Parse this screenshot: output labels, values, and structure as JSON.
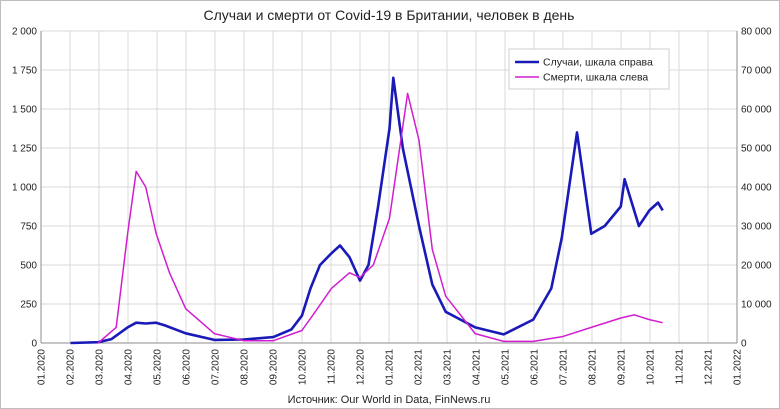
{
  "chart_data": {
    "type": "line",
    "title": "Случаи и смерти от Covid-19 в Британии, человек в день",
    "source": "Источник: Our World in Data, FinNews.ru",
    "x_ticks": [
      "01.2020",
      "02.2020",
      "03.2020",
      "04.2020",
      "05.2020",
      "06.2020",
      "07.2020",
      "08.2020",
      "09.2020",
      "10.2020",
      "11.2020",
      "12.2020",
      "01.2021",
      "02.2021",
      "03.2021",
      "04.2021",
      "05.2021",
      "06.2021",
      "07.2021",
      "08.2021",
      "09.2021",
      "10.2021",
      "11.2021",
      "12.2021",
      "01.2022"
    ],
    "y_left": {
      "ticks": [
        "0",
        "250",
        "500",
        "750",
        "1 000",
        "1 250",
        "1 500",
        "1 750",
        "2 000"
      ],
      "ylim": [
        0,
        2000
      ]
    },
    "y_right": {
      "ticks": [
        "0",
        "10 000",
        "20 000",
        "30 000",
        "40 000",
        "50 000",
        "60 000",
        "70 000",
        "80 000"
      ],
      "ylim": [
        0,
        80000
      ]
    },
    "grid": true,
    "legend_position": "top-right",
    "series": [
      {
        "name": "Случаи, шкала справа",
        "axis": "right",
        "color": "#1a1ab8",
        "points": [
          [
            "2020-02-01",
            0
          ],
          [
            "2020-03-01",
            200
          ],
          [
            "2020-03-15",
            1000
          ],
          [
            "2020-04-01",
            4000
          ],
          [
            "2020-04-10",
            5200
          ],
          [
            "2020-04-20",
            5000
          ],
          [
            "2020-05-01",
            5200
          ],
          [
            "2020-05-10",
            4500
          ],
          [
            "2020-06-01",
            2500
          ],
          [
            "2020-07-01",
            800
          ],
          [
            "2020-08-01",
            900
          ],
          [
            "2020-09-01",
            1500
          ],
          [
            "2020-09-20",
            3500
          ],
          [
            "2020-10-01",
            7000
          ],
          [
            "2020-10-10",
            14000
          ],
          [
            "2020-10-20",
            20000
          ],
          [
            "2020-11-01",
            23000
          ],
          [
            "2020-11-10",
            25000
          ],
          [
            "2020-11-20",
            22000
          ],
          [
            "2020-12-01",
            16000
          ],
          [
            "2020-12-10",
            20000
          ],
          [
            "2020-12-20",
            35000
          ],
          [
            "2021-01-01",
            55000
          ],
          [
            "2021-01-05",
            68000
          ],
          [
            "2021-01-15",
            50000
          ],
          [
            "2021-02-01",
            30000
          ],
          [
            "2021-02-15",
            15000
          ],
          [
            "2021-03-01",
            8000
          ],
          [
            "2021-04-01",
            4000
          ],
          [
            "2021-05-01",
            2200
          ],
          [
            "2021-06-01",
            6000
          ],
          [
            "2021-06-20",
            14000
          ],
          [
            "2021-07-01",
            27000
          ],
          [
            "2021-07-17",
            54000
          ],
          [
            "2021-08-01",
            28000
          ],
          [
            "2021-08-15",
            30000
          ],
          [
            "2021-09-01",
            35000
          ],
          [
            "2021-09-05",
            42000
          ],
          [
            "2021-09-20",
            30000
          ],
          [
            "2021-10-01",
            34000
          ],
          [
            "2021-10-10",
            36000
          ],
          [
            "2021-10-15",
            34000
          ]
        ]
      },
      {
        "name": "Смерти, шкала слева",
        "axis": "left",
        "color": "#d01ed0",
        "points": [
          [
            "2020-03-01",
            0
          ],
          [
            "2020-03-20",
            100
          ],
          [
            "2020-04-01",
            700
          ],
          [
            "2020-04-10",
            1100
          ],
          [
            "2020-04-20",
            1000
          ],
          [
            "2020-05-01",
            700
          ],
          [
            "2020-05-15",
            450
          ],
          [
            "2020-06-01",
            220
          ],
          [
            "2020-07-01",
            60
          ],
          [
            "2020-08-01",
            15
          ],
          [
            "2020-09-01",
            15
          ],
          [
            "2020-10-01",
            80
          ],
          [
            "2020-10-15",
            200
          ],
          [
            "2020-11-01",
            350
          ],
          [
            "2020-11-20",
            450
          ],
          [
            "2020-12-01",
            420
          ],
          [
            "2020-12-15",
            500
          ],
          [
            "2021-01-01",
            800
          ],
          [
            "2021-01-20",
            1600
          ],
          [
            "2021-02-01",
            1300
          ],
          [
            "2021-02-15",
            600
          ],
          [
            "2021-03-01",
            300
          ],
          [
            "2021-04-01",
            60
          ],
          [
            "2021-05-01",
            10
          ],
          [
            "2021-06-01",
            10
          ],
          [
            "2021-07-01",
            40
          ],
          [
            "2021-08-01",
            100
          ],
          [
            "2021-09-01",
            160
          ],
          [
            "2021-09-15",
            180
          ],
          [
            "2021-10-01",
            150
          ],
          [
            "2021-10-15",
            130
          ]
        ]
      }
    ]
  }
}
